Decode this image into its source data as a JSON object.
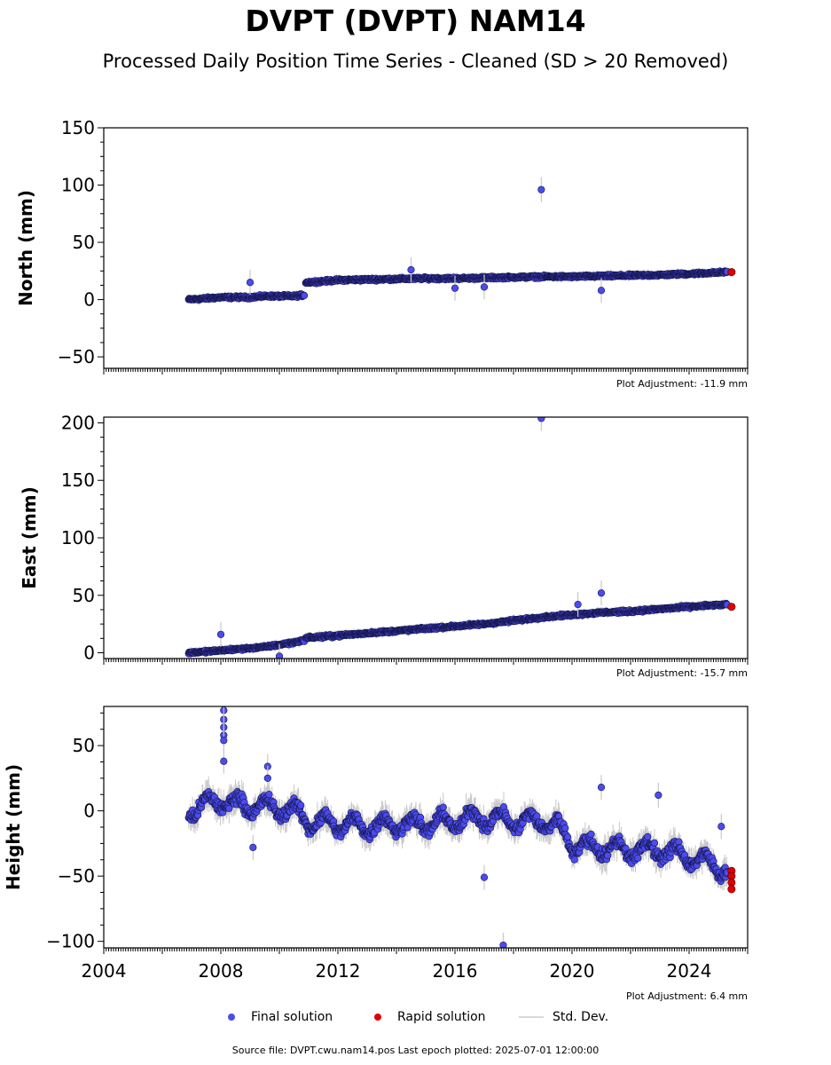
{
  "header": {
    "title": "DVPT (DVPT) NAM14",
    "subtitle": "Processed Daily Position Time Series - Cleaned (SD > 20 Removed)"
  },
  "legend": {
    "final": "Final solution",
    "rapid": "Rapid solution",
    "stddev": "Std. Dev."
  },
  "footer": {
    "source": "Source file: DVPT.cwu.nam14.pos  Last epoch plotted: 2025-07-01 12:00:00"
  },
  "colors": {
    "final": "#4b4bf0",
    "rapid": "#e00000",
    "stddev": "#c8c8c8"
  },
  "chart_data": [
    {
      "type": "scatter",
      "ylabel": "North (mm)",
      "ylim": [
        -60,
        150
      ],
      "yticks": [
        -50,
        0,
        50,
        100,
        150
      ],
      "xlim": [
        2004.0,
        2026.0
      ],
      "adjustment": "Plot Adjustment: -11.9 mm",
      "series": [
        {
          "name": "Final solution",
          "segments": [
            {
              "x": [
                2006.9,
                2007.5,
                2008.0,
                2008.5,
                2009.0,
                2009.5,
                2010.0,
                2010.5,
                2010.85
              ],
              "y": [
                0,
                1,
                2,
                2,
                2,
                3,
                3,
                3,
                4
              ]
            },
            {
              "x": [
                2010.9,
                2011.5,
                2012.0,
                2013.0,
                2014.0,
                2015.0,
                2016.0,
                2017.0,
                2018.0,
                2019.0,
                2020.0,
                2021.0,
                2022.0,
                2023.0,
                2024.0,
                2025.3
              ],
              "y": [
                15,
                16,
                17,
                17.5,
                18,
                18.5,
                18.5,
                19,
                19.5,
                20,
                20,
                20.5,
                21,
                21.5,
                22.5,
                24
              ]
            }
          ]
        },
        {
          "name": "Rapid solution",
          "x": [
            2025.45
          ],
          "y": [
            24
          ]
        }
      ],
      "outliers": [
        {
          "x": 2018.95,
          "y": 96
        },
        {
          "x": 2021.0,
          "y": 8
        },
        {
          "x": 2009.0,
          "y": 15
        },
        {
          "x": 2016.0,
          "y": 10
        },
        {
          "x": 2017.0,
          "y": 11
        },
        {
          "x": 2014.5,
          "y": 26
        }
      ]
    },
    {
      "type": "scatter",
      "ylabel": "East (mm)",
      "ylim": [
        -5,
        205
      ],
      "yticks": [
        0,
        50,
        100,
        150,
        200
      ],
      "xlim": [
        2004.0,
        2026.0
      ],
      "adjustment": "Plot Adjustment: -15.7 mm",
      "series": [
        {
          "name": "Final solution",
          "segments": [
            {
              "x": [
                2006.9,
                2007.5,
                2008.0,
                2008.5,
                2009.0,
                2009.5,
                2010.0,
                2010.5,
                2010.85
              ],
              "y": [
                0,
                1,
                2,
                3,
                4,
                5,
                7,
                9,
                11
              ]
            },
            {
              "x": [
                2010.9,
                2011.5,
                2012.0,
                2013.0,
                2014.0,
                2015.0,
                2016.0,
                2017.0,
                2018.0,
                2019.0,
                2020.0,
                2021.0,
                2022.0,
                2023.0,
                2024.0,
                2025.3
              ],
              "y": [
                13,
                14,
                15,
                17,
                19,
                21,
                23,
                25,
                28,
                31,
                33,
                35,
                36,
                38,
                40,
                42
              ]
            }
          ]
        },
        {
          "name": "Rapid solution",
          "x": [
            2025.45
          ],
          "y": [
            40
          ]
        }
      ],
      "outliers": [
        {
          "x": 2018.95,
          "y": 204
        },
        {
          "x": 2021.0,
          "y": 52
        },
        {
          "x": 2008.0,
          "y": 16
        },
        {
          "x": 2010.0,
          "y": -3
        },
        {
          "x": 2020.2,
          "y": 42
        }
      ]
    },
    {
      "type": "scatter",
      "ylabel": "Height (mm)",
      "ylim": [
        -105,
        80
      ],
      "yticks": [
        -100,
        -50,
        0,
        50
      ],
      "xlim": [
        2004.0,
        2026.0
      ],
      "xticks": [
        2004,
        2008,
        2012,
        2016,
        2020,
        2024
      ],
      "adjustment": "Plot Adjustment: 6.4 mm",
      "series": [
        {
          "name": "Final solution",
          "segments": [
            {
              "x": [
                2006.9,
                2007.5,
                2008.0,
                2008.5,
                2009.0,
                2009.5,
                2010.0,
                2010.5,
                2011.0,
                2012.0,
                2013.0,
                2014.0,
                2015.0,
                2016.0,
                2017.0,
                2018.0,
                2019.0,
                2019.5,
                2020.0,
                2020.5,
                2021.0,
                2022.0,
                2023.0,
                2024.0,
                2025.3
              ],
              "y": [
                0,
                5,
                8,
                5,
                4,
                3,
                2,
                0,
                -8,
                -10,
                -12,
                -10,
                -10,
                -8,
                -5,
                -8,
                -8,
                -12,
                -25,
                -28,
                -28,
                -30,
                -30,
                -35,
                -45
              ]
            }
          ]
        },
        {
          "name": "Rapid solution",
          "x": [
            2025.45,
            2025.45,
            2025.45,
            2025.45
          ],
          "y": [
            -46,
            -50,
            -55,
            -60
          ]
        }
      ],
      "outliers": [
        {
          "x": 2008.1,
          "y": 77
        },
        {
          "x": 2008.1,
          "y": 70
        },
        {
          "x": 2008.1,
          "y": 64
        },
        {
          "x": 2008.1,
          "y": 58
        },
        {
          "x": 2008.1,
          "y": 54
        },
        {
          "x": 2008.1,
          "y": 38
        },
        {
          "x": 2009.6,
          "y": 34
        },
        {
          "x": 2009.6,
          "y": 25
        },
        {
          "x": 2017.0,
          "y": -51
        },
        {
          "x": 2017.65,
          "y": -103
        },
        {
          "x": 2021.0,
          "y": 18
        },
        {
          "x": 2022.95,
          "y": 12
        },
        {
          "x": 2025.1,
          "y": -12
        },
        {
          "x": 2009.1,
          "y": -28
        }
      ]
    }
  ]
}
